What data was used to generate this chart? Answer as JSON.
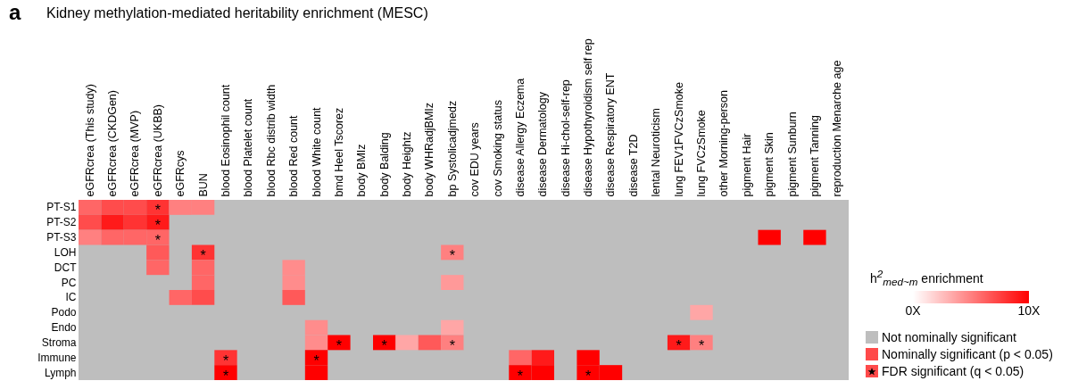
{
  "chart_data": {
    "type": "heatmap",
    "title": "Kidney methylation-mediated heritability enrichment (MESC)",
    "categories": [
      "eGFRcrea (This study)",
      "eGFRcrea (CKDGen)",
      "eGFRcrea (MVP)",
      "eGFRcrea (UKBB)",
      "eGFRcys",
      "BUN",
      "blood Eosinophil count",
      "blood Platelet count",
      "blood Rbc distrib width",
      "blood Red count",
      "blood White count",
      "bmd Heel Tscorez",
      "body BMIz",
      "body Balding",
      "body Heightz",
      "body WHRadjBMIz",
      "bp Systolicadjmedz",
      "cov EDU years",
      "cov Smoking status",
      "disease Allergy Eczema",
      "disease Dermatology",
      "disease Hi-chol-self-rep",
      "disease Hypothyroidism self rep",
      "disease Respiratory ENT",
      "disease T2D",
      "lental Neuroticism",
      "lung FEV1FVCzSmoke",
      "lung FVCzSmoke",
      "other Morning-person",
      "pigment Hair",
      "pigment Skin",
      "pigment Sunburn",
      "pigment Tanning",
      "reproduction Menarche age"
    ],
    "y_categories": [
      "PT-S1",
      "PT-S2",
      "PT-S3",
      "LOH",
      "DCT",
      "PC",
      "IC",
      "Podo",
      "Endo",
      "Stroma",
      "Immune",
      "Lymph"
    ],
    "cells": [
      [
        6,
        7,
        7,
        8,
        5,
        5,
        null,
        null,
        null,
        null,
        null,
        null,
        null,
        null,
        null,
        null,
        null,
        null,
        null,
        null,
        null,
        null,
        null,
        null,
        null,
        null,
        null,
        null,
        null,
        null,
        null,
        null,
        null,
        null
      ],
      [
        7,
        9,
        8,
        9,
        null,
        null,
        null,
        null,
        null,
        null,
        null,
        null,
        null,
        null,
        null,
        null,
        null,
        null,
        null,
        null,
        null,
        null,
        null,
        null,
        null,
        null,
        null,
        null,
        null,
        null,
        null,
        null,
        null,
        null
      ],
      [
        5,
        6,
        6,
        6,
        null,
        null,
        null,
        null,
        null,
        null,
        null,
        null,
        null,
        null,
        null,
        null,
        null,
        null,
        null,
        null,
        null,
        null,
        null,
        null,
        null,
        null,
        null,
        null,
        null,
        null,
        10,
        null,
        10,
        null
      ],
      [
        null,
        null,
        null,
        6.5,
        null,
        8,
        null,
        null,
        null,
        null,
        null,
        null,
        null,
        null,
        null,
        null,
        5,
        null,
        null,
        null,
        null,
        null,
        null,
        null,
        null,
        null,
        null,
        null,
        null,
        null,
        null,
        null,
        null,
        null
      ],
      [
        null,
        null,
        null,
        6,
        null,
        6,
        null,
        null,
        null,
        4.5,
        null,
        null,
        null,
        null,
        null,
        null,
        null,
        null,
        null,
        null,
        null,
        null,
        null,
        null,
        null,
        null,
        null,
        null,
        null,
        null,
        null,
        null,
        null,
        null
      ],
      [
        null,
        null,
        null,
        null,
        null,
        6,
        null,
        null,
        null,
        4.5,
        null,
        null,
        null,
        null,
        null,
        null,
        4,
        null,
        null,
        null,
        null,
        null,
        null,
        null,
        null,
        null,
        null,
        null,
        null,
        null,
        null,
        null,
        null,
        null
      ],
      [
        null,
        null,
        null,
        null,
        6,
        7,
        null,
        null,
        null,
        6.5,
        null,
        null,
        null,
        null,
        null,
        null,
        null,
        null,
        null,
        null,
        null,
        null,
        null,
        null,
        null,
        null,
        null,
        null,
        null,
        null,
        null,
        null,
        null,
        null
      ],
      [
        null,
        null,
        null,
        null,
        null,
        null,
        null,
        null,
        null,
        null,
        null,
        null,
        null,
        null,
        null,
        null,
        null,
        null,
        null,
        null,
        null,
        null,
        null,
        null,
        null,
        null,
        null,
        3.5,
        null,
        null,
        null,
        null,
        null,
        null
      ],
      [
        null,
        null,
        null,
        null,
        null,
        null,
        null,
        null,
        null,
        null,
        4.5,
        null,
        null,
        null,
        null,
        null,
        3.5,
        null,
        null,
        null,
        null,
        null,
        null,
        null,
        null,
        null,
        null,
        null,
        null,
        null,
        null,
        null,
        null,
        null
      ],
      [
        null,
        null,
        null,
        null,
        null,
        null,
        null,
        null,
        null,
        null,
        4.5,
        10,
        null,
        10,
        3.5,
        6.5,
        5,
        null,
        null,
        null,
        null,
        null,
        null,
        null,
        null,
        null,
        9,
        5,
        null,
        null,
        null,
        null,
        null,
        null
      ],
      [
        null,
        null,
        null,
        null,
        null,
        null,
        8,
        null,
        null,
        null,
        10,
        null,
        null,
        null,
        null,
        null,
        null,
        null,
        null,
        6,
        9,
        null,
        10,
        null,
        null,
        null,
        null,
        null,
        null,
        null,
        null,
        null,
        null,
        null
      ],
      [
        null,
        null,
        null,
        null,
        null,
        null,
        10,
        null,
        null,
        null,
        10,
        null,
        null,
        null,
        null,
        null,
        null,
        null,
        null,
        10,
        10,
        null,
        10,
        10,
        null,
        null,
        null,
        null,
        null,
        null,
        null,
        null,
        null,
        null
      ]
    ],
    "cell_labels": [
      [
        null,
        null,
        null,
        "*",
        null,
        null,
        null,
        null,
        null,
        null,
        null,
        null,
        null,
        null,
        null,
        null,
        null,
        null,
        null,
        null,
        null,
        null,
        null,
        null,
        null,
        null,
        null,
        null,
        null,
        null,
        null,
        null,
        null,
        null
      ],
      [
        null,
        null,
        null,
        "*",
        null,
        null,
        null,
        null,
        null,
        null,
        null,
        null,
        null,
        null,
        null,
        null,
        null,
        null,
        null,
        null,
        null,
        null,
        null,
        null,
        null,
        null,
        null,
        null,
        null,
        null,
        null,
        null,
        null,
        null
      ],
      [
        null,
        null,
        null,
        "*",
        null,
        null,
        null,
        null,
        null,
        null,
        null,
        null,
        null,
        null,
        null,
        null,
        null,
        null,
        null,
        null,
        null,
        null,
        null,
        null,
        null,
        null,
        null,
        null,
        null,
        null,
        null,
        null,
        null,
        null
      ],
      [
        null,
        null,
        null,
        null,
        null,
        "*",
        null,
        null,
        null,
        null,
        null,
        null,
        null,
        null,
        null,
        null,
        "*",
        null,
        null,
        null,
        null,
        null,
        null,
        null,
        null,
        null,
        null,
        null,
        null,
        null,
        null,
        null,
        null,
        null
      ],
      [
        null,
        null,
        null,
        null,
        null,
        null,
        null,
        null,
        null,
        null,
        null,
        null,
        null,
        null,
        null,
        null,
        null,
        null,
        null,
        null,
        null,
        null,
        null,
        null,
        null,
        null,
        null,
        null,
        null,
        null,
        null,
        null,
        null,
        null
      ],
      [
        null,
        null,
        null,
        null,
        null,
        null,
        null,
        null,
        null,
        null,
        null,
        null,
        null,
        null,
        null,
        null,
        null,
        null,
        null,
        null,
        null,
        null,
        null,
        null,
        null,
        null,
        null,
        null,
        null,
        null,
        null,
        null,
        null,
        null
      ],
      [
        null,
        null,
        null,
        null,
        null,
        null,
        null,
        null,
        null,
        null,
        null,
        null,
        null,
        null,
        null,
        null,
        null,
        null,
        null,
        null,
        null,
        null,
        null,
        null,
        null,
        null,
        null,
        null,
        null,
        null,
        null,
        null,
        null,
        null
      ],
      [
        null,
        null,
        null,
        null,
        null,
        null,
        null,
        null,
        null,
        null,
        null,
        null,
        null,
        null,
        null,
        null,
        null,
        null,
        null,
        null,
        null,
        null,
        null,
        null,
        null,
        null,
        null,
        null,
        null,
        null,
        null,
        null,
        null,
        null
      ],
      [
        null,
        null,
        null,
        null,
        null,
        null,
        null,
        null,
        null,
        null,
        null,
        null,
        null,
        null,
        null,
        null,
        null,
        null,
        null,
        null,
        null,
        null,
        null,
        null,
        null,
        null,
        null,
        null,
        null,
        null,
        null,
        null,
        null,
        null
      ],
      [
        null,
        null,
        null,
        null,
        null,
        null,
        null,
        null,
        null,
        null,
        null,
        "*",
        null,
        "*",
        null,
        null,
        "*",
        null,
        null,
        null,
        null,
        null,
        null,
        null,
        null,
        null,
        "*",
        "*",
        null,
        null,
        null,
        null,
        null,
        null
      ],
      [
        null,
        null,
        null,
        null,
        null,
        null,
        "*",
        null,
        null,
        null,
        "*",
        null,
        null,
        null,
        null,
        null,
        null,
        null,
        null,
        null,
        null,
        null,
        null,
        null,
        null,
        null,
        null,
        null,
        null,
        null,
        null,
        null,
        null,
        null
      ],
      [
        null,
        null,
        null,
        null,
        null,
        null,
        "*",
        null,
        null,
        null,
        null,
        null,
        null,
        null,
        null,
        null,
        null,
        null,
        null,
        "*",
        null,
        null,
        "*",
        null,
        null,
        null,
        null,
        null,
        null,
        null,
        null,
        null,
        null,
        null
      ]
    ],
    "clabel": "h$^{2}$$_{med~m}$ enrichment",
    "clim": [
      0,
      10
    ],
    "cticks": [
      {
        "value": 0,
        "label": "0X"
      },
      {
        "value": 10,
        "label": "10X"
      }
    ],
    "annotations": [
      "a",
      "Not nominally significant",
      "Nominally significant (p < 0.05)",
      "FDR significant (q < 0.05)"
    ]
  }
}
